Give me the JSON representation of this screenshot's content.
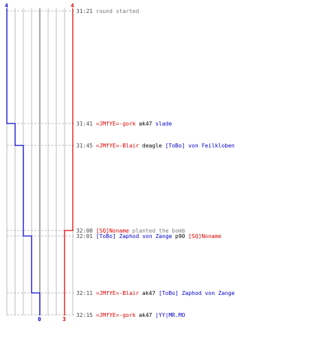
{
  "chart_data": {
    "type": "line",
    "colors": {
      "team_a": "#0000cc",
      "team_b": "#dd0000",
      "time": "#444444",
      "event": "#777777",
      "grid": "#bbbbbb",
      "center": "#666666",
      "dash": "#bbbbbb"
    },
    "team_a_top_count": "4",
    "team_b_top_count": "4",
    "team_a_end_count": "0",
    "team_b_end_count": "3",
    "events": [
      {
        "time": "31:21",
        "segments": [
          {
            "text": "round started",
            "color": "event"
          }
        ]
      },
      {
        "time": "31:41",
        "segments": [
          {
            "text": "=JMfYE=-gork",
            "color": "team_b"
          },
          {
            "text": " ak47 ",
            "color": "plain"
          },
          {
            "text": "slade",
            "color": "team_a"
          }
        ]
      },
      {
        "time": "31:45",
        "segments": [
          {
            "text": "=JMfYE=-Blair",
            "color": "team_b"
          },
          {
            "text": " deagle ",
            "color": "plain"
          },
          {
            "text": "[ToBo] von Feilkloben",
            "color": "team_a"
          }
        ]
      },
      {
        "time": "32:00",
        "segments": [
          {
            "text": "[SQ]Noname",
            "color": "team_b"
          },
          {
            "text": " planted the bomb",
            "color": "event"
          }
        ]
      },
      {
        "time": "32:01",
        "segments": [
          {
            "text": "[ToBo] Zaphod von Zange",
            "color": "team_a"
          },
          {
            "text": " p90 ",
            "color": "plain"
          },
          {
            "text": "[SQ]Noname",
            "color": "team_b"
          }
        ]
      },
      {
        "time": "32:11",
        "segments": [
          {
            "text": "=JMfYE=-Blair",
            "color": "team_b"
          },
          {
            "text": " ak47 ",
            "color": "plain"
          },
          {
            "text": "[ToBo] Zaphod von Zange",
            "color": "team_a"
          }
        ]
      },
      {
        "time": "32:15",
        "segments": [
          {
            "text": "=JMfYE=-gork",
            "color": "team_b"
          },
          {
            "text": " ak47 ",
            "color": "plain"
          },
          {
            "text": "|YY|MR.MO",
            "color": "team_a"
          }
        ]
      }
    ],
    "team_a_alive": [
      4,
      3,
      2,
      2,
      1,
      0,
      0
    ],
    "team_b_alive": [
      4,
      4,
      4,
      3,
      3,
      3,
      3
    ]
  }
}
